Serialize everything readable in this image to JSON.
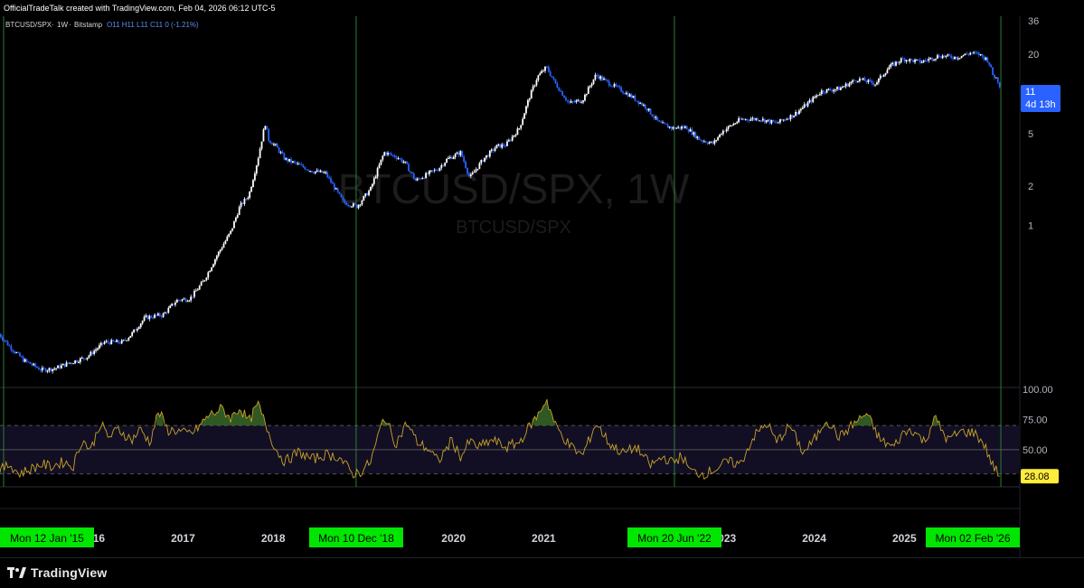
{
  "header": {
    "attribution": "OfficialTradeTalk created with TradingView.com, Feb 04, 2026 06:12 UTC-5"
  },
  "legend": {
    "symbol": "BTCUSD/SPX",
    "interval": "1W",
    "exchange": "Bitstamp",
    "ohlc": "O11 H11 L11 C11 0 (-1.21%)"
  },
  "watermark": {
    "title": "BTCUSD/SPX, 1W",
    "subtitle": "BTCUSD/SPX"
  },
  "price_badge": {
    "value": "11",
    "countdown": "4d 13h",
    "color": "#2962ff"
  },
  "rsi_badge": {
    "value": "28.08",
    "color": "#ffeb3b"
  },
  "footer": {
    "brand": "TradingView"
  },
  "chart_data": [
    {
      "type": "line",
      "subtype": "candlestick",
      "scale": "log",
      "y_ticks": [
        1,
        2,
        5,
        11,
        20,
        36
      ],
      "x_ticks": [
        "2016",
        "2017",
        "2018",
        "2020",
        "2021",
        "2023",
        "2024",
        "2025"
      ],
      "ylim": [
        0.07,
        36
      ],
      "up_color": "#ffffff",
      "down_color": "#2962ff",
      "x": [
        2014.98,
        2015.1,
        2015.25,
        2015.45,
        2015.6,
        2015.75,
        2015.95,
        2016.15,
        2016.35,
        2016.45,
        2016.6,
        2016.8,
        2016.95,
        2017.1,
        2017.25,
        2017.4,
        2017.55,
        2017.65,
        2017.75,
        2017.85,
        2017.93,
        2017.97,
        2018.05,
        2018.15,
        2018.3,
        2018.45,
        2018.6,
        2018.8,
        2018.95,
        2019.1,
        2019.25,
        2019.4,
        2019.48,
        2019.6,
        2019.75,
        2019.85,
        2019.95,
        2020.1,
        2020.2,
        2020.35,
        2020.5,
        2020.6,
        2020.75,
        2020.85,
        2020.95,
        2021.05,
        2021.15,
        2021.3,
        2021.45,
        2021.6,
        2021.75,
        2021.85,
        2022.0,
        2022.15,
        2022.3,
        2022.45,
        2022.6,
        2022.75,
        2022.9,
        2023.0,
        2023.2,
        2023.4,
        2023.6,
        2023.8,
        2023.95,
        2024.1,
        2024.3,
        2024.5,
        2024.7,
        2024.85,
        2025.0,
        2025.2,
        2025.4,
        2025.6,
        2025.75,
        2025.85,
        2025.95,
        2026.0,
        2026.05,
        2026.09
      ],
      "y": [
        0.15,
        0.12,
        0.095,
        0.08,
        0.082,
        0.09,
        0.1,
        0.13,
        0.13,
        0.15,
        0.2,
        0.21,
        0.27,
        0.28,
        0.38,
        0.6,
        0.9,
        1.4,
        1.7,
        3.2,
        6.0,
        4.5,
        4.0,
        3.2,
        2.9,
        2.6,
        2.5,
        1.5,
        1.4,
        1.9,
        3.6,
        3.3,
        3.0,
        2.2,
        2.5,
        2.7,
        3.2,
        3.6,
        2.3,
        3.2,
        4.0,
        4.1,
        5.5,
        9.0,
        13.5,
        16.0,
        12.0,
        8.5,
        9.0,
        14.0,
        12.0,
        11.0,
        9.5,
        8.0,
        6.0,
        5.5,
        5.6,
        4.5,
        4.2,
        5.2,
        6.4,
        6.5,
        6.0,
        7.0,
        8.5,
        10.5,
        11.0,
        13.0,
        12.0,
        16.0,
        18.5,
        17.5,
        19.5,
        19.0,
        20.5,
        20.0,
        18.0,
        14.0,
        13.0,
        11.0
      ]
    },
    {
      "type": "line",
      "name": "RSI",
      "y_ticks": [
        50,
        75,
        100
      ],
      "ylim": [
        20,
        100
      ],
      "bands": [
        30,
        50,
        70
      ],
      "line_color": "#c9a227",
      "x": [
        2014.98,
        2015.1,
        2015.2,
        2015.3,
        2015.45,
        2015.55,
        2015.7,
        2015.8,
        2015.9,
        2016.0,
        2016.1,
        2016.2,
        2016.3,
        2016.45,
        2016.55,
        2016.65,
        2016.75,
        2016.85,
        2016.95,
        2017.05,
        2017.15,
        2017.3,
        2017.45,
        2017.55,
        2017.65,
        2017.75,
        2017.85,
        2017.95,
        2018.05,
        2018.15,
        2018.3,
        2018.45,
        2018.6,
        2018.75,
        2018.9,
        2019.0,
        2019.1,
        2019.25,
        2019.38,
        2019.5,
        2019.62,
        2019.75,
        2019.85,
        2020.0,
        2020.1,
        2020.2,
        2020.3,
        2020.45,
        2020.6,
        2020.75,
        2020.85,
        2020.95,
        2021.05,
        2021.15,
        2021.3,
        2021.45,
        2021.6,
        2021.75,
        2021.9,
        2022.05,
        2022.2,
        2022.35,
        2022.45,
        2022.55,
        2022.65,
        2022.8,
        2022.95,
        2023.05,
        2023.2,
        2023.35,
        2023.5,
        2023.6,
        2023.75,
        2023.9,
        2024.05,
        2024.15,
        2024.3,
        2024.45,
        2024.6,
        2024.75,
        2024.9,
        2025.0,
        2025.1,
        2025.25,
        2025.35,
        2025.5,
        2025.65,
        2025.8,
        2025.9,
        2026.0,
        2026.09
      ],
      "y": [
        32,
        38,
        30,
        33,
        38,
        36,
        40,
        36,
        58,
        50,
        72,
        60,
        67,
        58,
        67,
        56,
        82,
        66,
        66,
        63,
        65,
        78,
        84,
        76,
        85,
        73,
        88,
        68,
        50,
        40,
        48,
        42,
        46,
        44,
        30,
        32,
        40,
        78,
        55,
        72,
        56,
        50,
        40,
        58,
        44,
        57,
        52,
        58,
        52,
        56,
        68,
        78,
        92,
        70,
        54,
        45,
        72,
        55,
        47,
        52,
        37,
        44,
        39,
        45,
        32,
        30,
        35,
        40,
        38,
        61,
        72,
        56,
        70,
        47,
        61,
        76,
        60,
        71,
        80,
        58,
        52,
        63,
        67,
        56,
        77,
        58,
        65,
        64,
        55,
        37,
        28.08
      ]
    }
  ],
  "markers": [
    {
      "label": "Mon 12 Jan '15",
      "x": 2015.03
    },
    {
      "label": "Mon 10 Dec '18",
      "x": 2018.94
    },
    {
      "label": "Mon 20 Jun '22",
      "x": 2022.47
    },
    {
      "label": "Mon 02 Feb '26",
      "x": 2026.09
    }
  ],
  "colors": {
    "marker_line": "#2e7d32",
    "marker_badge": "#00e600",
    "rsi_band_fill": "#120f24",
    "grid": "#1e222d"
  }
}
